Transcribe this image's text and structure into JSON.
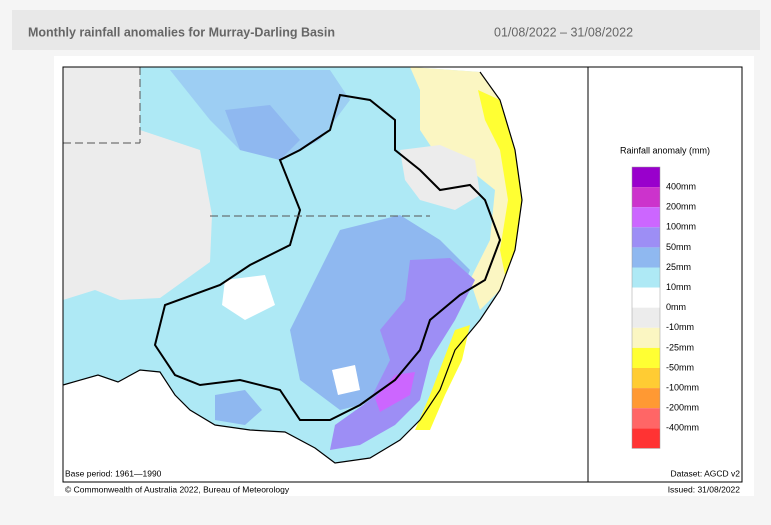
{
  "header": {
    "title": "Monthly rainfall anomalies for Murray-Darling Basin",
    "period": "01/08/2022 – 31/08/2022"
  },
  "legend": {
    "title": "Rainfall anomaly (mm)",
    "labels": [
      "400mm",
      "200mm",
      "100mm",
      "50mm",
      "25mm",
      "10mm",
      "0mm",
      "-10mm",
      "-25mm",
      "-50mm",
      "-100mm",
      "-200mm",
      "-400mm"
    ],
    "colors": [
      "#9900cc",
      "#cc33cc",
      "#cc66ff",
      "#9d8ef5",
      "#8fb8f0",
      "#aee9f5",
      "#ffffff",
      "#ececec",
      "#fbf6c2",
      "#ffff33",
      "#ffcc33",
      "#ff9933",
      "#ff6666",
      "#ff3333"
    ]
  },
  "footer": {
    "base_period": "Base period: 1961—1990",
    "dataset": "Dataset: AGCD v2",
    "copyright": "© Commonwealth of Australia 2022, Bureau of Meteorology",
    "issued": "Issued: 31/08/2022"
  }
}
